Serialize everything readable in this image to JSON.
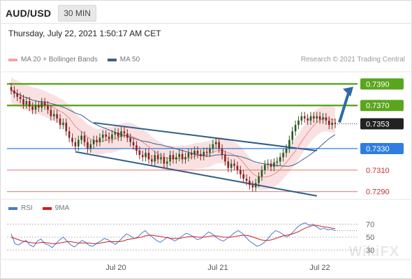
{
  "header": {
    "symbol": "AUD/USD",
    "timeframe": "30 MIN",
    "timestamp": "Thursday, July 22, 2021 1:50:17 AM CET"
  },
  "legend": {
    "ma20_bb": "MA 20 + Bollinger Bands",
    "ma50": "MA 50",
    "copyright": "Research © 2021 Trading Central"
  },
  "rsi_legend": {
    "rsi": "RSI",
    "ma9": "9MA"
  },
  "watermark": "WikiFX",
  "colors": {
    "resistance": "#5aa51e",
    "support_strong": "#2f7de1",
    "support": "#e07070",
    "channel": "#2f5d8a",
    "arrow": "#2f6aa3",
    "bb_fill": "#f5c8c8",
    "ma20": "#e88a8a",
    "ma50": "#3c5f8f",
    "candle_up": "#2a5a22",
    "candle_down": "#8a2222",
    "rsi": "#4a7ad0",
    "rsi_ma": "#d02020",
    "last_price_bg": "#222222"
  },
  "chart_data": [
    {
      "type": "candlestick",
      "title": "AUD/USD",
      "ylim": [
        0.7284,
        0.7398
      ],
      "x_ticks": [
        "Jul 20",
        "Jul 21",
        "Jul 22"
      ],
      "levels": [
        {
          "label": "0.7390",
          "value": 0.739,
          "kind": "resistance"
        },
        {
          "label": "0.7370",
          "value": 0.737,
          "kind": "resistance"
        },
        {
          "label": "0.7353",
          "value": 0.7353,
          "kind": "last"
        },
        {
          "label": "0.7330",
          "value": 0.733,
          "kind": "pivot"
        },
        {
          "label": "0.7310",
          "value": 0.731,
          "kind": "support"
        },
        {
          "label": "0.7290",
          "value": 0.729,
          "kind": "support"
        }
      ],
      "close_series": [
        0.7384,
        0.7381,
        0.7378,
        0.7376,
        0.7371,
        0.7374,
        0.7369,
        0.7366,
        0.737,
        0.7368,
        0.7373,
        0.737,
        0.7366,
        0.736,
        0.7362,
        0.7358,
        0.7352,
        0.7354,
        0.7346,
        0.734,
        0.7336,
        0.7332,
        0.7338,
        0.7342,
        0.7336,
        0.733,
        0.7334,
        0.7338,
        0.7336,
        0.734,
        0.7343,
        0.7341,
        0.7339,
        0.7343,
        0.7345,
        0.7341,
        0.7346,
        0.7344,
        0.734,
        0.7336,
        0.7333,
        0.7328,
        0.7324,
        0.7322,
        0.7326,
        0.732,
        0.7318,
        0.7324,
        0.732,
        0.7322,
        0.7316,
        0.7318,
        0.7324,
        0.732,
        0.7322,
        0.7325,
        0.732,
        0.7322,
        0.7326,
        0.7324,
        0.7328,
        0.7325,
        0.7323,
        0.7327,
        0.7326,
        0.733,
        0.7334,
        0.7336,
        0.733,
        0.7324,
        0.7318,
        0.7312,
        0.7316,
        0.7314,
        0.731,
        0.7306,
        0.7302,
        0.73,
        0.7296,
        0.7294,
        0.7298,
        0.7304,
        0.731,
        0.7315,
        0.7316,
        0.7313,
        0.7317,
        0.7318,
        0.7322,
        0.7326,
        0.733,
        0.7338,
        0.7346,
        0.7352,
        0.7356,
        0.736,
        0.7358,
        0.7356,
        0.736,
        0.7358,
        0.736,
        0.7357,
        0.7359,
        0.7356,
        0.7352,
        0.7354,
        0.7353
      ],
      "channel": {
        "upper": [
          [
            0.7354,
            0.7356
          ],
          [
            0.7333,
            0.7328
          ]
        ],
        "lower": [
          [
            0.7327,
            0.7332
          ],
          [
            0.729,
            0.7286
          ]
        ]
      },
      "forecast_target": 0.739
    },
    {
      "type": "line",
      "title": "RSI",
      "ylim": [
        20,
        80
      ],
      "y_ticks": [
        70,
        50,
        30
      ],
      "series": [
        {
          "name": "RSI",
          "values": [
            55,
            40,
            38,
            42,
            45,
            38,
            35,
            44,
            47,
            40,
            38,
            34,
            40,
            46,
            50,
            44,
            38,
            35,
            40,
            45,
            42,
            37,
            36,
            41,
            44,
            48,
            46,
            42,
            39,
            44,
            50,
            55,
            52,
            48,
            50,
            56,
            60,
            54,
            50,
            45,
            42,
            46,
            50,
            47,
            44,
            48,
            52,
            56,
            54,
            50,
            46,
            48,
            53,
            58,
            55,
            50,
            46,
            44,
            48,
            52,
            57,
            60,
            56,
            50,
            44,
            40,
            36,
            38,
            42,
            48,
            55,
            60,
            58,
            54,
            50,
            54,
            60,
            66,
            70,
            72,
            68,
            70,
            66,
            62,
            64,
            61,
            62,
            60
          ]
        },
        {
          "name": "9MA",
          "values": [
            50,
            48,
            46,
            44,
            43,
            42,
            41,
            41,
            42,
            42,
            41,
            40,
            40,
            41,
            42,
            43,
            43,
            42,
            41,
            41,
            41,
            41,
            40,
            40,
            41,
            42,
            43,
            43,
            43,
            43,
            44,
            46,
            47,
            48,
            49,
            50,
            52,
            53,
            53,
            52,
            51,
            50,
            49,
            48,
            48,
            48,
            49,
            50,
            51,
            51,
            50,
            50,
            50,
            51,
            52,
            52,
            51,
            50,
            50,
            50,
            51,
            52,
            53,
            53,
            52,
            50,
            48,
            46,
            45,
            45,
            46,
            48,
            50,
            52,
            53,
            54,
            56,
            58,
            61,
            64,
            66,
            68,
            68,
            67,
            66,
            65,
            64,
            63
          ]
        }
      ]
    }
  ]
}
